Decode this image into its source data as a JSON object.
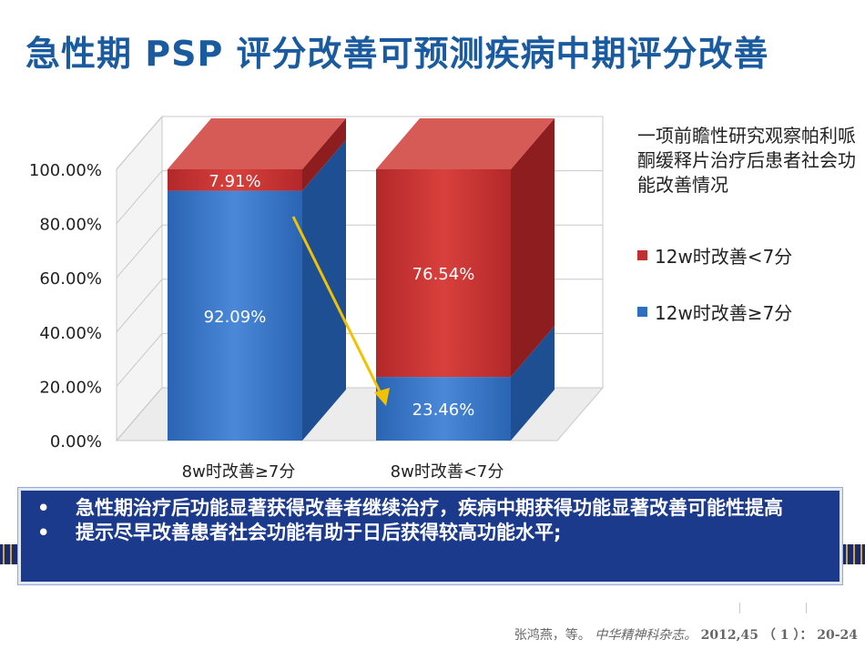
{
  "title": "急性期 PSP 评分改善可预测疾病中期评分改善",
  "side_note": "一项前瞻性研究观察帕利哌酮缓释片治疗后患者社会功能改善情况",
  "legend": [
    {
      "label": "12w时改善<7分",
      "color": "#c0302e"
    },
    {
      "label": "12w时改善≥7分",
      "color": "#2f6fc1"
    }
  ],
  "chart_data": {
    "type": "bar",
    "stacked": true,
    "categories": [
      "8w时改善≥7分",
      "8w时改善<7分"
    ],
    "series": [
      {
        "name": "12w时改善≥7分",
        "values": [
          92.09,
          23.46
        ],
        "labels": [
          "92.09%",
          "23.46%"
        ],
        "color": "#2f6fc1"
      },
      {
        "name": "12w时改善<7分",
        "values": [
          7.91,
          76.54
        ],
        "labels": [
          "7.91%",
          "76.54%"
        ],
        "color": "#c0302e"
      }
    ],
    "y_ticks": [
      "0.00%",
      "20.00%",
      "40.00%",
      "60.00%",
      "80.00%",
      "100.00%"
    ],
    "ylim": [
      0,
      100
    ],
    "annotation": "yellow arrow from first bar to second bar blue segment",
    "three_d": true,
    "grid": true,
    "legend_position": "right"
  },
  "bullets": [
    "急性期治疗后功能显著获得改善者继续治疗，疾病中期获得功能显著改善可能性提高",
    "提示尽早改善患者社会功能有助于日后获得较高功能水平;"
  ],
  "citation": {
    "authors": "张鸿燕，等。",
    "journal": "中华精神科杂志。",
    "volume": "2012,45 （ 1 ）： 20-24"
  }
}
